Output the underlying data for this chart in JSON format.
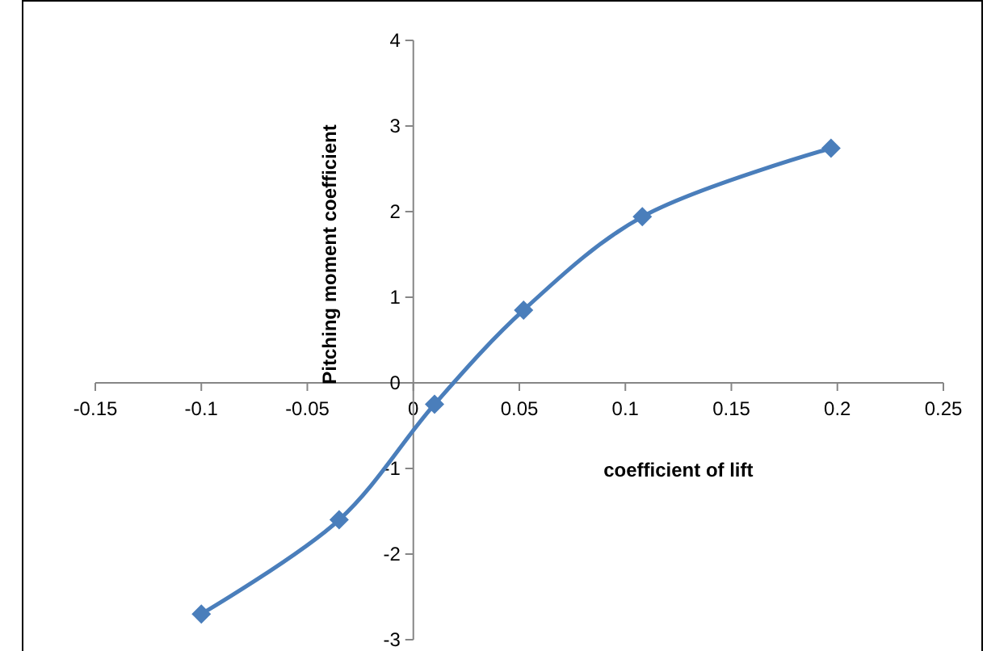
{
  "chart_data": {
    "type": "line",
    "xlabel": "coefficient of lift",
    "ylabel": "Pitching moment coefficient",
    "x": [
      -0.1,
      -0.035,
      0.01,
      0.052,
      0.108,
      0.197
    ],
    "series": [
      {
        "color": "#4a7ebb",
        "values": [
          -2.7,
          -1.6,
          -0.25,
          0.85,
          1.94,
          2.74
        ]
      }
    ],
    "xlim": [
      -0.15,
      0.25
    ],
    "xticks": [
      -0.15,
      -0.1,
      -0.05,
      0,
      0.05,
      0.1,
      0.15,
      0.2,
      0.25
    ],
    "ylim": [
      -3,
      4
    ],
    "yticks": [
      -3,
      -2,
      -1,
      0,
      1,
      2,
      3,
      4
    ],
    "grid": false,
    "marker": "diamond",
    "line_style": "solid"
  }
}
